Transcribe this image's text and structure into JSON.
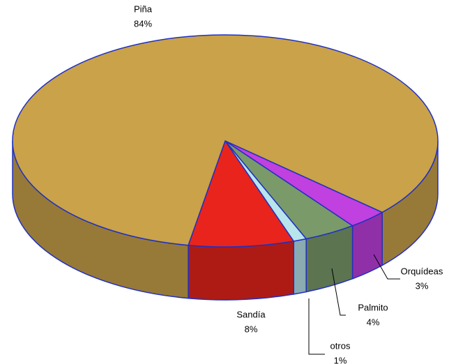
{
  "chart_data": {
    "type": "pie",
    "categories": [
      "Sandía",
      "otros",
      "Palmito",
      "Orquídeas",
      "Piña"
    ],
    "values": [
      8,
      1,
      4,
      3,
      84
    ],
    "value_labels": [
      "8%",
      "1%",
      "4%",
      "3%",
      "84%"
    ],
    "colors": [
      "#e8241c",
      "#b8e4ec",
      "#7a9a6a",
      "#c040e0",
      "#c9a24a"
    ]
  }
}
